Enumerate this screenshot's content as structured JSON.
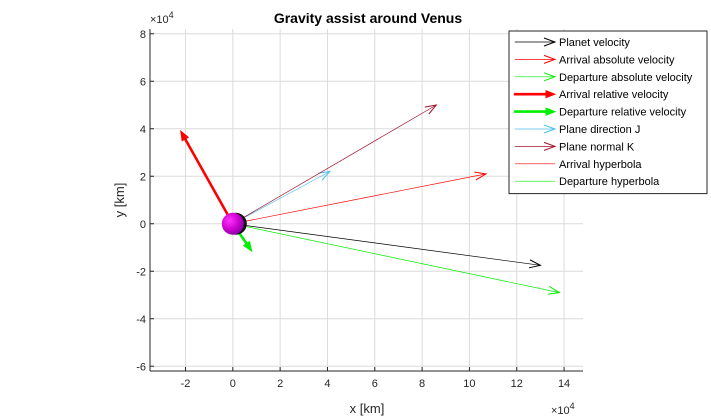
{
  "chart_data": {
    "type": "quiver",
    "title": "Gravity assist around Venus",
    "xlabel": "x [km]",
    "ylabel": "y [km]",
    "scale_factor_label": "×10",
    "scale_exponent": "4",
    "scale": 10000,
    "xlim": [
      -3.5,
      14.8
    ],
    "ylim": [
      -6.2,
      8.2
    ],
    "xticks": [
      -2,
      0,
      2,
      4,
      6,
      8,
      10,
      12,
      14
    ],
    "yticks": [
      -6,
      -4,
      -2,
      0,
      2,
      4,
      6,
      8
    ],
    "grid": true,
    "legend_position": "top-right",
    "planet": {
      "x": 0,
      "y": 0,
      "colors": [
        "#ff33ff",
        "#8800aa",
        "#111111"
      ]
    },
    "series": [
      {
        "name": "Planet velocity",
        "color": "#000000",
        "kind": "arrow",
        "width": 0.7,
        "x0": 0,
        "y0": 0,
        "x1": 13.0,
        "y1": -1.75
      },
      {
        "name": "Arrival absolute velocity",
        "color": "#ff0000",
        "kind": "arrow",
        "width": 0.7,
        "x0": 0,
        "y0": 0,
        "x1": 10.7,
        "y1": 2.1
      },
      {
        "name": "Departure absolute velocity",
        "color": "#00ee00",
        "kind": "arrow",
        "width": 0.7,
        "x0": 0,
        "y0": 0,
        "x1": 13.8,
        "y1": -2.9
      },
      {
        "name": "Arrival relative velocity",
        "color": "#ff0000",
        "kind": "arrow",
        "width": 2.6,
        "x0": 0,
        "y0": 0,
        "x1": -2.2,
        "y1": 3.9
      },
      {
        "name": "Departure relative velocity",
        "color": "#00ee00",
        "kind": "arrow",
        "width": 2.6,
        "x0": 0,
        "y0": 0,
        "x1": 0.8,
        "y1": -1.15
      },
      {
        "name": "Plane direction J",
        "color": "#4dbeee",
        "kind": "arrow",
        "width": 0.7,
        "x0": 0,
        "y0": 0,
        "x1": 4.1,
        "y1": 2.2
      },
      {
        "name": "Plane normal K",
        "color": "#a2142f",
        "kind": "arrow",
        "width": 0.7,
        "x0": 0,
        "y0": 0,
        "x1": 8.6,
        "y1": 5.0
      },
      {
        "name": "Arrival hyperbola",
        "color": "#ff0000",
        "kind": "line",
        "width": 0.7
      },
      {
        "name": "Departure hyperbola",
        "color": "#00ee00",
        "kind": "line",
        "width": 0.7
      }
    ]
  }
}
